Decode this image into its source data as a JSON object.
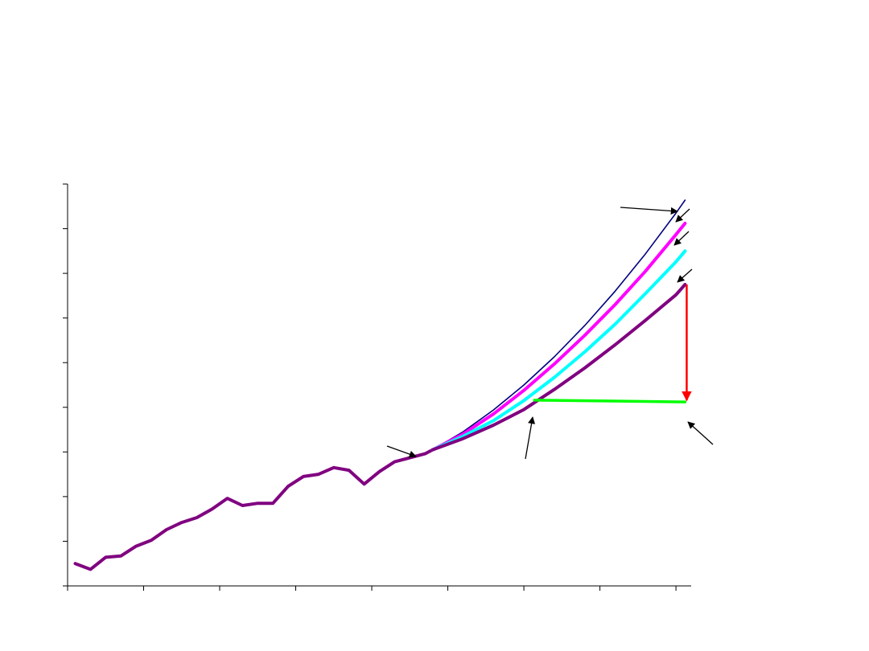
{
  "chart_data": {
    "type": "line",
    "title": "",
    "xlabel": "",
    "ylabel": "",
    "x_ticks": [
      0,
      5,
      10,
      15,
      20,
      25,
      30,
      35,
      40
    ],
    "y_ticks": [
      0,
      1,
      2,
      3,
      4,
      5,
      6,
      7,
      8,
      9
    ],
    "xlim": [
      0,
      41
    ],
    "ylim": [
      0,
      9
    ],
    "grid": false,
    "legend": "none",
    "series": [
      {
        "color": "#800080",
        "x": [
          0.5,
          1.5,
          2.5,
          3.5,
          4.5,
          5.5,
          6.5,
          7.5,
          8.5,
          9.5,
          10.5,
          11.5,
          12.5,
          13.5,
          14.5,
          15.5,
          16.5,
          17.5,
          18.5,
          19.5,
          20.5,
          21.5,
          22.5,
          23.5,
          24.0
        ],
        "y": [
          0.5,
          0.37,
          0.64,
          0.67,
          0.89,
          1.02,
          1.26,
          1.42,
          1.53,
          1.72,
          1.96,
          1.8,
          1.85,
          1.85,
          2.23,
          2.45,
          2.5,
          2.65,
          2.59,
          2.28,
          2.56,
          2.78,
          2.87,
          2.96,
          3.05
        ]
      },
      {
        "color": "#00007F",
        "x": [
          24.0,
          26,
          28,
          30,
          32,
          34,
          36,
          38,
          40,
          40.6
        ],
        "y": [
          3.05,
          3.45,
          3.94,
          4.5,
          5.13,
          5.83,
          6.6,
          7.44,
          8.35,
          8.64
        ]
      },
      {
        "color": "#FF00FF",
        "x": [
          24.0,
          26,
          28,
          30,
          32,
          34,
          36,
          38,
          40,
          40.6
        ],
        "y": [
          3.05,
          3.4,
          3.85,
          4.38,
          4.97,
          5.61,
          6.3,
          7.05,
          7.87,
          8.12
        ]
      },
      {
        "color": "#00FFFF",
        "x": [
          24.0,
          26,
          28,
          30,
          32,
          34,
          36,
          38,
          40,
          40.6
        ],
        "y": [
          3.05,
          3.35,
          3.7,
          4.15,
          4.67,
          5.24,
          5.86,
          6.55,
          7.26,
          7.5
        ]
      },
      {
        "color": "#800080",
        "x": [
          24.0,
          26,
          28,
          30,
          32,
          34,
          36,
          38,
          40,
          40.6
        ],
        "y": [
          3.05,
          3.3,
          3.6,
          3.95,
          4.4,
          4.88,
          5.4,
          5.95,
          6.52,
          6.75
        ]
      },
      {
        "color": "#00FF00",
        "x": [
          30.7,
          40.6
        ],
        "y": [
          4.16,
          4.12
        ]
      }
    ],
    "annotations": [
      {
        "type": "double-arrow",
        "color": "#FF0000",
        "x": 40.6,
        "y_from": 6.75,
        "y_to": 4.12
      }
    ]
  }
}
